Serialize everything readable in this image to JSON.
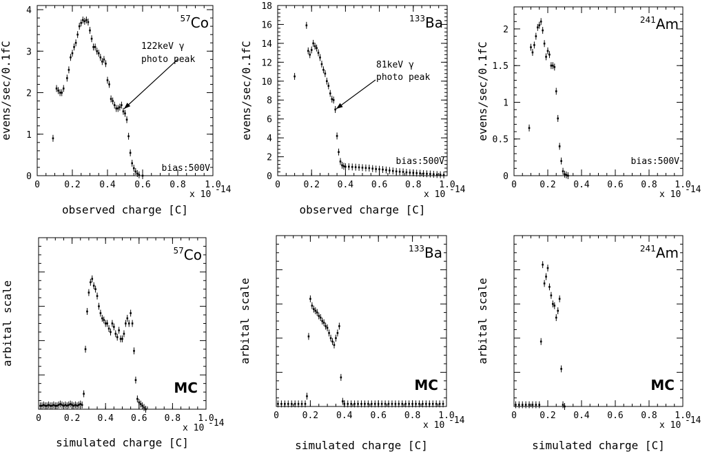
{
  "chart_data": [
    {
      "type": "scatter",
      "panel": "top-left",
      "isotope": {
        "mass": "57",
        "symbol": "Co"
      },
      "xlabel": "observed charge [C]",
      "x_multiplier": "x 10",
      "x_exponent": "-14",
      "ylabel": "evens/sec/0.1fC",
      "xlim": [
        0,
        1.0
      ],
      "ylim": [
        0,
        4.1
      ],
      "xticks": [
        0,
        0.2,
        0.4,
        0.6,
        0.8,
        1.0
      ],
      "xtick_labels": [
        "0",
        "0.2",
        "0.4",
        "0.6",
        "0.8",
        "1.0"
      ],
      "yticks": [
        0,
        1,
        2,
        3,
        4
      ],
      "ytick_labels": [
        "0",
        "1",
        "2",
        "3",
        "4"
      ],
      "annotation": {
        "lines": [
          "122keV γ",
          "photo peak"
        ],
        "points_to": [
          0.49,
          1.7
        ]
      },
      "note": "bias:500V",
      "x": [
        0.09,
        0.11,
        0.12,
        0.13,
        0.14,
        0.15,
        0.17,
        0.18,
        0.19,
        0.2,
        0.21,
        0.22,
        0.23,
        0.24,
        0.25,
        0.26,
        0.27,
        0.28,
        0.29,
        0.3,
        0.31,
        0.32,
        0.33,
        0.34,
        0.35,
        0.36,
        0.37,
        0.38,
        0.39,
        0.4,
        0.41,
        0.42,
        0.43,
        0.44,
        0.45,
        0.46,
        0.47,
        0.48,
        0.49,
        0.5,
        0.51,
        0.52,
        0.53,
        0.54,
        0.55,
        0.56,
        0.57,
        0.58,
        0.6
      ],
      "y": [
        0.9,
        2.1,
        2.05,
        2.0,
        2.0,
        2.1,
        2.35,
        2.55,
        2.85,
        2.95,
        3.1,
        3.2,
        3.4,
        3.6,
        3.68,
        3.75,
        3.72,
        3.75,
        3.7,
        3.5,
        3.3,
        3.1,
        3.1,
        3.0,
        2.95,
        2.85,
        2.75,
        2.8,
        2.7,
        2.3,
        2.2,
        1.85,
        1.8,
        1.7,
        1.62,
        1.62,
        1.65,
        1.7,
        1.55,
        1.5,
        1.35,
        0.95,
        0.55,
        0.3,
        0.18,
        0.1,
        0.05,
        0.02,
        0.0
      ]
    },
    {
      "type": "scatter",
      "panel": "top-middle",
      "isotope": {
        "mass": "133",
        "symbol": "Ba"
      },
      "xlabel": "observed charge [C]",
      "x_multiplier": "x 10",
      "x_exponent": "-14",
      "ylabel": "evens/sec/0.1fC",
      "xlim": [
        0,
        1.0
      ],
      "ylim": [
        0,
        18
      ],
      "xticks": [
        0,
        0.2,
        0.4,
        0.6,
        0.8,
        1.0
      ],
      "xtick_labels": [
        "0",
        "0.2",
        "0.4",
        "0.6",
        "0.8",
        "1.0"
      ],
      "yticks": [
        0,
        2,
        4,
        6,
        8,
        10,
        12,
        14,
        16,
        18
      ],
      "ytick_labels": [
        "0",
        "2",
        "4",
        "6",
        "8",
        "10",
        "12",
        "14",
        "16",
        "18"
      ],
      "annotation": {
        "lines": [
          "81keV γ",
          "photo peak"
        ],
        "points_to": [
          0.33,
          7.3
        ]
      },
      "note": "bias:500V",
      "x": [
        0.1,
        0.17,
        0.18,
        0.19,
        0.2,
        0.21,
        0.22,
        0.23,
        0.24,
        0.25,
        0.26,
        0.27,
        0.28,
        0.29,
        0.3,
        0.31,
        0.32,
        0.33,
        0.34,
        0.35,
        0.36,
        0.37,
        0.38,
        0.39,
        0.4,
        0.42,
        0.44,
        0.46,
        0.48,
        0.5,
        0.52,
        0.54,
        0.56,
        0.58,
        0.6,
        0.62,
        0.64,
        0.66,
        0.68,
        0.7,
        0.72,
        0.74,
        0.76,
        0.78,
        0.8,
        0.82,
        0.84,
        0.86,
        0.88,
        0.9,
        0.92,
        0.94,
        0.96,
        0.98
      ],
      "y": [
        10.5,
        15.9,
        13.2,
        12.8,
        13.3,
        14.0,
        13.7,
        13.5,
        13.0,
        12.5,
        11.8,
        11.2,
        10.8,
        10.0,
        9.5,
        8.7,
        8.1,
        8.0,
        7.0,
        4.2,
        2.5,
        1.5,
        1.1,
        1.0,
        0.95,
        0.95,
        0.92,
        0.9,
        0.88,
        0.85,
        0.82,
        0.8,
        0.75,
        0.7,
        0.68,
        0.65,
        0.6,
        0.55,
        0.5,
        0.45,
        0.42,
        0.4,
        0.35,
        0.32,
        0.3,
        0.27,
        0.25,
        0.22,
        0.2,
        0.18,
        0.15,
        0.12,
        0.1,
        0.08
      ]
    },
    {
      "type": "scatter",
      "panel": "top-right",
      "isotope": {
        "mass": "241",
        "symbol": "Am"
      },
      "xlabel": "",
      "x_multiplier": "x 10",
      "x_exponent": "-14",
      "ylabel": "evens/sec/0.1fC",
      "xlim": [
        0,
        1.0
      ],
      "ylim": [
        0,
        2.3
      ],
      "xticks": [
        0,
        0.2,
        0.4,
        0.6,
        0.8,
        1.0
      ],
      "xtick_labels": [
        "0",
        "0.2",
        "0.4",
        "0.6",
        "0.8",
        "1.0"
      ],
      "yticks": [
        0,
        0.5,
        1,
        1.5,
        2
      ],
      "ytick_labels": [
        "0",
        "0.5",
        "1",
        "1.5",
        "2"
      ],
      "note": "bias:500V",
      "x": [
        0.09,
        0.1,
        0.11,
        0.12,
        0.13,
        0.14,
        0.15,
        0.16,
        0.17,
        0.18,
        0.19,
        0.2,
        0.21,
        0.22,
        0.23,
        0.24,
        0.25,
        0.26,
        0.27,
        0.28,
        0.29,
        0.3,
        0.31,
        0.32
      ],
      "y": [
        0.65,
        1.75,
        1.68,
        1.78,
        1.9,
        2.02,
        2.05,
        2.1,
        1.98,
        1.8,
        1.62,
        1.7,
        1.65,
        1.5,
        1.5,
        1.48,
        1.15,
        0.78,
        0.4,
        0.2,
        0.06,
        0.02,
        0.01,
        0.0
      ]
    },
    {
      "type": "scatter",
      "panel": "bottom-left",
      "isotope": {
        "mass": "57",
        "symbol": "Co"
      },
      "mc_label": "MC",
      "xlabel": "simulated charge [C]",
      "x_multiplier": "x 10",
      "x_exponent": "-14",
      "ylabel": "arbital scale",
      "xlim": [
        0,
        1.0
      ],
      "ylim": [
        0,
        1.0
      ],
      "xticks": [
        0,
        0.2,
        0.4,
        0.6,
        0.8,
        1.0
      ],
      "xtick_labels": [
        "0",
        "0.2",
        "0.4",
        "0.6",
        "0.8",
        "1.0"
      ],
      "x": [
        0.01,
        0.02,
        0.03,
        0.04,
        0.05,
        0.06,
        0.07,
        0.08,
        0.09,
        0.1,
        0.11,
        0.12,
        0.13,
        0.14,
        0.15,
        0.16,
        0.17,
        0.18,
        0.19,
        0.2,
        0.21,
        0.22,
        0.23,
        0.24,
        0.25,
        0.26,
        0.27,
        0.28,
        0.29,
        0.3,
        0.31,
        0.32,
        0.33,
        0.34,
        0.35,
        0.36,
        0.37,
        0.38,
        0.39,
        0.4,
        0.41,
        0.42,
        0.43,
        0.44,
        0.45,
        0.46,
        0.47,
        0.48,
        0.49,
        0.5,
        0.51,
        0.52,
        0.53,
        0.54,
        0.55,
        0.56,
        0.57,
        0.58,
        0.59,
        0.6,
        0.61,
        0.62,
        0.63,
        0.64
      ],
      "y": [
        0.02,
        0.02,
        0.025,
        0.02,
        0.02,
        0.025,
        0.02,
        0.02,
        0.025,
        0.02,
        0.02,
        0.025,
        0.03,
        0.025,
        0.02,
        0.025,
        0.02,
        0.025,
        0.03,
        0.025,
        0.02,
        0.025,
        0.02,
        0.025,
        0.03,
        0.025,
        0.09,
        0.35,
        0.57,
        0.68,
        0.74,
        0.76,
        0.72,
        0.7,
        0.66,
        0.6,
        0.56,
        0.53,
        0.52,
        0.5,
        0.5,
        0.47,
        0.45,
        0.5,
        0.48,
        0.44,
        0.42,
        0.46,
        0.41,
        0.41,
        0.44,
        0.5,
        0.53,
        0.5,
        0.56,
        0.5,
        0.34,
        0.17,
        0.06,
        0.04,
        0.03,
        0.02,
        0.01,
        0.0
      ]
    },
    {
      "type": "scatter",
      "panel": "bottom-middle",
      "isotope": {
        "mass": "133",
        "symbol": "Ba"
      },
      "mc_label": "MC",
      "xlabel": "simulated charge [C]",
      "x_multiplier": "x 10",
      "x_exponent": "-14",
      "ylabel": "arbital scale",
      "xlim": [
        0,
        1.0
      ],
      "ylim": [
        0,
        1.0
      ],
      "xticks": [
        0,
        0.2,
        0.4,
        0.6,
        0.8,
        1.0
      ],
      "xtick_labels": [
        "0",
        "0.2",
        "0.4",
        "0.6",
        "0.8",
        "1.0"
      ],
      "x": [
        0.01,
        0.03,
        0.05,
        0.07,
        0.09,
        0.11,
        0.13,
        0.15,
        0.17,
        0.18,
        0.19,
        0.2,
        0.21,
        0.22,
        0.23,
        0.24,
        0.25,
        0.26,
        0.27,
        0.28,
        0.29,
        0.3,
        0.31,
        0.32,
        0.33,
        0.34,
        0.35,
        0.36,
        0.37,
        0.38,
        0.39,
        0.4,
        0.42,
        0.44,
        0.46,
        0.48,
        0.5,
        0.52,
        0.54,
        0.56,
        0.58,
        0.6,
        0.62,
        0.64,
        0.66,
        0.68,
        0.7,
        0.72,
        0.74,
        0.76,
        0.78,
        0.8,
        0.82,
        0.84,
        0.86,
        0.88,
        0.9,
        0.92,
        0.94,
        0.96,
        0.98
      ],
      "y": [
        0.015,
        0.015,
        0.015,
        0.015,
        0.015,
        0.015,
        0.015,
        0.015,
        0.015,
        0.06,
        0.41,
        0.63,
        0.59,
        0.57,
        0.56,
        0.55,
        0.53,
        0.52,
        0.5,
        0.49,
        0.47,
        0.46,
        0.43,
        0.4,
        0.38,
        0.36,
        0.4,
        0.43,
        0.47,
        0.17,
        0.03,
        0.015,
        0.015,
        0.015,
        0.015,
        0.015,
        0.015,
        0.015,
        0.015,
        0.015,
        0.015,
        0.015,
        0.015,
        0.015,
        0.015,
        0.015,
        0.015,
        0.015,
        0.015,
        0.015,
        0.015,
        0.015,
        0.015,
        0.015,
        0.015,
        0.015,
        0.015,
        0.015,
        0.015,
        0.015,
        0.015
      ]
    },
    {
      "type": "scatter",
      "panel": "bottom-right",
      "isotope": {
        "mass": "241",
        "symbol": "Am"
      },
      "mc_label": "MC",
      "xlabel": "simulated charge [C]",
      "x_multiplier": "x 10",
      "x_exponent": "-14",
      "ylabel": "arbital scale",
      "xlim": [
        0,
        1.0
      ],
      "ylim": [
        0,
        1.0
      ],
      "xticks": [
        0,
        0.2,
        0.4,
        0.6,
        0.8,
        1.0
      ],
      "xtick_labels": [
        "0",
        "0.2",
        "0.4",
        "0.6",
        "0.8",
        "1.0"
      ],
      "x": [
        0.01,
        0.03,
        0.05,
        0.07,
        0.09,
        0.11,
        0.13,
        0.15,
        0.16,
        0.17,
        0.18,
        0.19,
        0.2,
        0.21,
        0.22,
        0.23,
        0.24,
        0.25,
        0.26,
        0.27,
        0.28,
        0.29,
        0.3
      ],
      "y": [
        0.01,
        0.01,
        0.01,
        0.01,
        0.01,
        0.01,
        0.01,
        0.01,
        0.38,
        0.83,
        0.72,
        0.76,
        0.81,
        0.7,
        0.65,
        0.6,
        0.59,
        0.52,
        0.56,
        0.63,
        0.22,
        0.01,
        0.0
      ]
    }
  ]
}
